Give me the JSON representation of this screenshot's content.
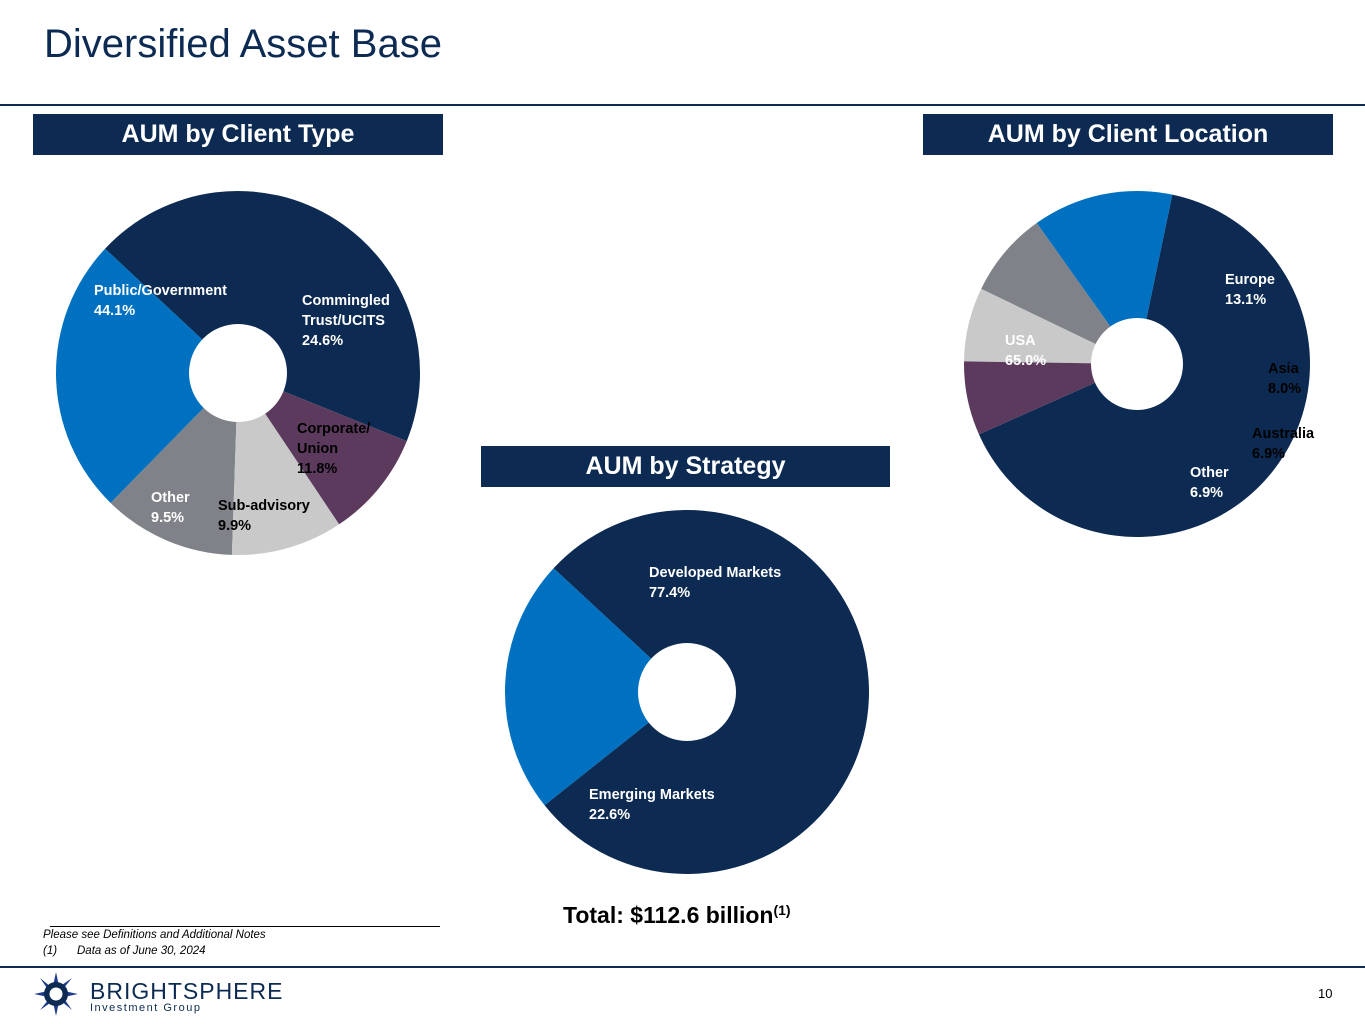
{
  "page": {
    "title": "Diversified Asset Base",
    "total_label": "Total: $112.6 billion",
    "total_sup": "(1)",
    "footnote_intro": "Please see Definitions and Additional Notes",
    "footnote_num": "(1)",
    "footnote_text": "Data as of June 30, 2024",
    "brand_name": "BRIGHTSPHERE",
    "brand_sub": "Investment Group",
    "page_number": "10"
  },
  "colors": {
    "navy": "#0d2b52",
    "blue": "#0070c0",
    "gray": "#7f8288",
    "light_gray": "#c8c9c8",
    "plum": "#5b3a5e",
    "white": "#ffffff",
    "black": "#000000"
  },
  "chart_data": [
    {
      "type": "pie",
      "title": "AUM by Client Type",
      "unit": "%",
      "slices": [
        {
          "label_lines": [
            "Public/Government"
          ],
          "value": 44.1,
          "value_label": "44.1%",
          "color": "#0d2b52",
          "label_color": "#ffffff"
        },
        {
          "label_lines": [
            "Commingled",
            "Trust/UCITS"
          ],
          "value": 24.6,
          "value_label": "24.6%",
          "color": "#0070c0",
          "label_color": "#ffffff"
        },
        {
          "label_lines": [
            "Corporate/",
            "Union"
          ],
          "value": 11.8,
          "value_label": "11.8%",
          "color": "#7f8288",
          "label_color": "#000000"
        },
        {
          "label_lines": [
            "Sub-advisory"
          ],
          "value": 9.9,
          "value_label": "9.9%",
          "color": "#c8c9c8",
          "label_color": "#000000"
        },
        {
          "label_lines": [
            "Other"
          ],
          "value": 9.5,
          "value_label": "9.5%",
          "color": "#5b3a5e",
          "label_color": "#ffffff"
        }
      ]
    },
    {
      "type": "pie",
      "title": "AUM by Strategy",
      "unit": "%",
      "slices": [
        {
          "label_lines": [
            "Developed Markets"
          ],
          "value": 77.4,
          "value_label": "77.4%",
          "color": "#0d2b52",
          "label_color": "#ffffff"
        },
        {
          "label_lines": [
            "Emerging Markets"
          ],
          "value": 22.6,
          "value_label": "22.6%",
          "color": "#0070c0",
          "label_color": "#ffffff"
        }
      ]
    },
    {
      "type": "pie",
      "title": "AUM by Client Location",
      "unit": "%",
      "slices": [
        {
          "label_lines": [
            "USA"
          ],
          "value": 65.0,
          "value_label": "65.0%",
          "color": "#0d2b52",
          "label_color": "#ffffff"
        },
        {
          "label_lines": [
            "Europe"
          ],
          "value": 13.1,
          "value_label": "13.1%",
          "color": "#0070c0",
          "label_color": "#ffffff"
        },
        {
          "label_lines": [
            "Asia"
          ],
          "value": 8.0,
          "value_label": "8.0%",
          "color": "#7f8288",
          "label_color": "#000000"
        },
        {
          "label_lines": [
            "Australia"
          ],
          "value": 6.9,
          "value_label": "6.9%",
          "color": "#c8c9c8",
          "label_color": "#000000"
        },
        {
          "label_lines": [
            "Other"
          ],
          "value": 6.9,
          "value_label": "6.9%",
          "color": "#5b3a5e",
          "label_color": "#ffffff"
        }
      ]
    }
  ]
}
